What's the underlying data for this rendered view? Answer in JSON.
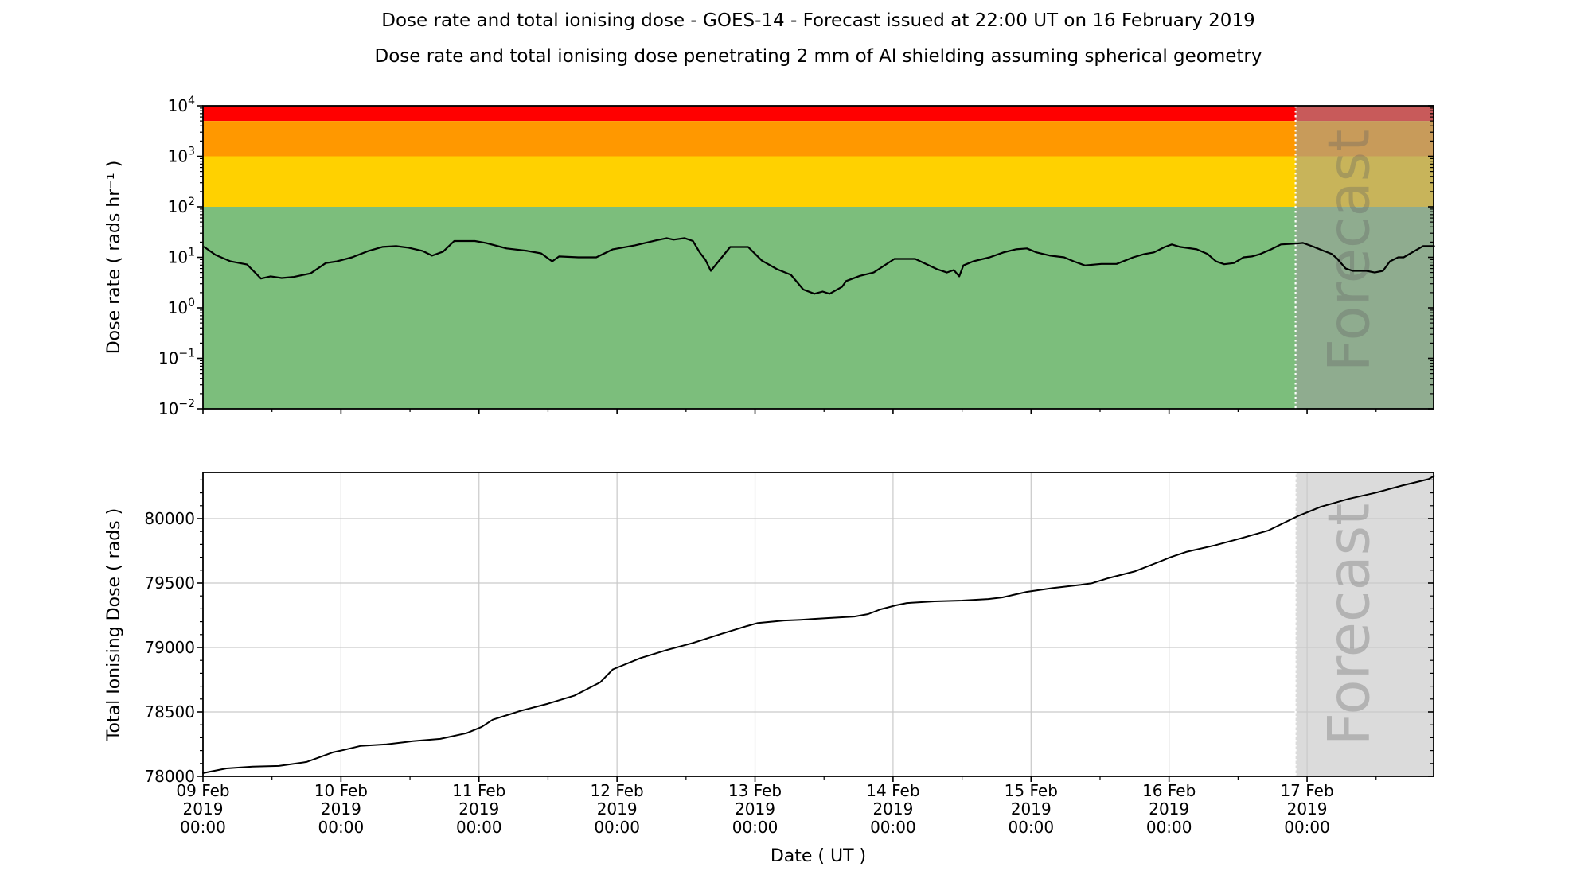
{
  "header": {
    "title": "Dose rate and total ionising dose - GOES-14 - Forecast issued at 22:00 UT on 16 February 2019",
    "subtitle": "Dose rate and total ionising dose penetrating 2 mm of Al shielding assuming spherical geometry"
  },
  "forecast": {
    "label": "Forecast",
    "start_day": 7.9167,
    "start_label": "22:00 UT 16 Feb 2019",
    "divider_color": "#ffffff",
    "overlay_color_top": "rgba(158,158,158,0.57)",
    "overlay_color_bottom": "#dbdbdb",
    "label_color": "rgba(95,95,95,0.32)"
  },
  "x_axis": {
    "label": "Date ( UT )",
    "range_days": [
      0,
      8.9167
    ],
    "minor_tick_interval_days": 0.5,
    "major_ticks": [
      {
        "day": 0,
        "lines": [
          "09 Feb",
          "2019",
          "00:00"
        ]
      },
      {
        "day": 1,
        "lines": [
          "10 Feb",
          "2019",
          "00:00"
        ]
      },
      {
        "day": 2,
        "lines": [
          "11 Feb",
          "2019",
          "00:00"
        ]
      },
      {
        "day": 3,
        "lines": [
          "12 Feb",
          "2019",
          "00:00"
        ]
      },
      {
        "day": 4,
        "lines": [
          "13 Feb",
          "2019",
          "00:00"
        ]
      },
      {
        "day": 5,
        "lines": [
          "14 Feb",
          "2019",
          "00:00"
        ]
      },
      {
        "day": 6,
        "lines": [
          "15 Feb",
          "2019",
          "00:00"
        ]
      },
      {
        "day": 7,
        "lines": [
          "16 Feb",
          "2019",
          "00:00"
        ]
      },
      {
        "day": 8,
        "lines": [
          "17 Feb",
          "2019",
          "00:00"
        ]
      }
    ]
  },
  "chart_data": [
    {
      "type": "line",
      "name": "dose-rate-panel",
      "ylabel": "Dose rate ( rads hr⁻¹ )",
      "yscale": "log",
      "ylim": [
        0.01,
        10000
      ],
      "ytick_exponents": [
        4,
        3,
        2,
        1,
        0,
        -1,
        -2
      ],
      "grid": false,
      "line_color": "#000000",
      "bands": [
        {
          "name": "red",
          "range": [
            5000,
            10000
          ],
          "color": "#ff0000"
        },
        {
          "name": "orange",
          "range": [
            1000,
            5000
          ],
          "color": "#ff9800"
        },
        {
          "name": "yellow",
          "range": [
            100,
            1000
          ],
          "color": "#ffd100"
        },
        {
          "name": "green",
          "range": [
            0.01,
            100
          ],
          "color": "#7cbe7c"
        }
      ],
      "series": [
        {
          "name": "GOES-14 dose rate",
          "points": [
            [
              0.01,
              16
            ],
            [
              0.09,
              11.2
            ],
            [
              0.2,
              8.3
            ],
            [
              0.32,
              7.2
            ],
            [
              0.42,
              3.8
            ],
            [
              0.49,
              4.2
            ],
            [
              0.57,
              3.9
            ],
            [
              0.66,
              4.1
            ],
            [
              0.78,
              4.8
            ],
            [
              0.89,
              7.7
            ],
            [
              0.97,
              8.3
            ],
            [
              1.08,
              10
            ],
            [
              1.2,
              13.4
            ],
            [
              1.3,
              16.1
            ],
            [
              1.4,
              16.7
            ],
            [
              1.49,
              15.5
            ],
            [
              1.59,
              13.4
            ],
            [
              1.66,
              10.8
            ],
            [
              1.74,
              13
            ],
            [
              1.82,
              21
            ],
            [
              1.97,
              21
            ],
            [
              2.05,
              19.3
            ],
            [
              2.2,
              15
            ],
            [
              2.35,
              13.4
            ],
            [
              2.45,
              12
            ],
            [
              2.53,
              8.3
            ],
            [
              2.58,
              10.4
            ],
            [
              2.72,
              10
            ],
            [
              2.85,
              10
            ],
            [
              2.97,
              14.4
            ],
            [
              3.13,
              17.3
            ],
            [
              3.28,
              21.6
            ],
            [
              3.36,
              24
            ],
            [
              3.41,
              22.4
            ],
            [
              3.49,
              24
            ],
            [
              3.55,
              21
            ],
            [
              3.6,
              12.4
            ],
            [
              3.64,
              9
            ],
            [
              3.68,
              5.4
            ],
            [
              3.82,
              16
            ],
            [
              3.95,
              16
            ],
            [
              4.05,
              8.6
            ],
            [
              4.16,
              5.8
            ],
            [
              4.26,
              4.5
            ],
            [
              4.35,
              2.3
            ],
            [
              4.43,
              1.9
            ],
            [
              4.49,
              2.1
            ],
            [
              4.54,
              1.9
            ],
            [
              4.63,
              2.6
            ],
            [
              4.66,
              3.4
            ],
            [
              4.76,
              4.3
            ],
            [
              4.86,
              5.0
            ],
            [
              5.01,
              9.3
            ],
            [
              5.16,
              9.3
            ],
            [
              5.32,
              5.8
            ],
            [
              5.39,
              5.0
            ],
            [
              5.44,
              5.6
            ],
            [
              5.48,
              4.2
            ],
            [
              5.51,
              6.9
            ],
            [
              5.58,
              8.3
            ],
            [
              5.7,
              10
            ],
            [
              5.8,
              12.5
            ],
            [
              5.89,
              14.4
            ],
            [
              5.97,
              15
            ],
            [
              6.04,
              12.5
            ],
            [
              6.14,
              10.8
            ],
            [
              6.24,
              10
            ],
            [
              6.31,
              8.3
            ],
            [
              6.39,
              6.9
            ],
            [
              6.51,
              7.4
            ],
            [
              6.62,
              7.4
            ],
            [
              6.74,
              10
            ],
            [
              6.82,
              11.6
            ],
            [
              6.89,
              12.5
            ],
            [
              6.97,
              16.1
            ],
            [
              7.02,
              18
            ],
            [
              7.08,
              16.1
            ],
            [
              7.2,
              14.4
            ],
            [
              7.28,
              11.6
            ],
            [
              7.34,
              8.3
            ],
            [
              7.4,
              7.3
            ],
            [
              7.47,
              7.7
            ],
            [
              7.54,
              10
            ],
            [
              7.6,
              10.4
            ],
            [
              7.66,
              11.6
            ],
            [
              7.74,
              14.4
            ],
            [
              7.81,
              18
            ],
            [
              7.92,
              18.7
            ],
            [
              7.97,
              19.3
            ],
            [
              8.05,
              16.1
            ],
            [
              8.12,
              13.4
            ],
            [
              8.18,
              11.6
            ],
            [
              8.22,
              9.3
            ],
            [
              8.28,
              6.0
            ],
            [
              8.33,
              5.4
            ],
            [
              8.43,
              5.4
            ],
            [
              8.49,
              5.0
            ],
            [
              8.55,
              5.4
            ],
            [
              8.6,
              8.3
            ],
            [
              8.66,
              10
            ],
            [
              8.7,
              10
            ],
            [
              8.78,
              13.4
            ],
            [
              8.84,
              16.7
            ],
            [
              8.92,
              16.7
            ]
          ]
        }
      ]
    },
    {
      "type": "line",
      "name": "total-ionising-dose-panel",
      "ylabel": "Total Ionising Dose ( rads )",
      "yscale": "linear",
      "ylim": [
        78000,
        80358
      ],
      "yticks": [
        78000,
        78500,
        79000,
        79500,
        80000
      ],
      "y_minor_interval": 100,
      "grid": true,
      "grid_color": "#c9c9c9",
      "line_color": "#000000",
      "series": [
        {
          "name": "GOES-14 total ionising dose",
          "points": [
            [
              0.0,
              78025
            ],
            [
              0.17,
              78062
            ],
            [
              0.36,
              78075
            ],
            [
              0.55,
              78081
            ],
            [
              0.75,
              78112
            ],
            [
              0.94,
              78186
            ],
            [
              1.02,
              78205
            ],
            [
              1.14,
              78236
            ],
            [
              1.33,
              78248
            ],
            [
              1.52,
              78273
            ],
            [
              1.72,
              78291
            ],
            [
              1.91,
              78335
            ],
            [
              2.02,
              78384
            ],
            [
              2.1,
              78440
            ],
            [
              2.3,
              78508
            ],
            [
              2.5,
              78564
            ],
            [
              2.69,
              78626
            ],
            [
              2.88,
              78731
            ],
            [
              2.97,
              78830
            ],
            [
              3.17,
              78918
            ],
            [
              3.36,
              78980
            ],
            [
              3.55,
              79035
            ],
            [
              3.75,
              79104
            ],
            [
              3.94,
              79166
            ],
            [
              4.02,
              79190
            ],
            [
              4.21,
              79209
            ],
            [
              4.33,
              79215
            ],
            [
              4.52,
              79228
            ],
            [
              4.72,
              79240
            ],
            [
              4.82,
              79259
            ],
            [
              4.91,
              79296
            ],
            [
              5.02,
              79327
            ],
            [
              5.1,
              79345
            ],
            [
              5.3,
              79358
            ],
            [
              5.5,
              79364
            ],
            [
              5.69,
              79376
            ],
            [
              5.79,
              79388
            ],
            [
              5.97,
              79432
            ],
            [
              6.16,
              79462
            ],
            [
              6.36,
              79486
            ],
            [
              6.44,
              79498
            ],
            [
              6.55,
              79535
            ],
            [
              6.75,
              79590
            ],
            [
              6.94,
              79670
            ],
            [
              7.01,
              79700
            ],
            [
              7.13,
              79743
            ],
            [
              7.33,
              79792
            ],
            [
              7.52,
              79847
            ],
            [
              7.72,
              79908
            ],
            [
              7.93,
              80018
            ],
            [
              8.1,
              80092
            ],
            [
              8.3,
              80153
            ],
            [
              8.5,
              80202
            ],
            [
              8.69,
              80257
            ],
            [
              8.88,
              80306
            ],
            [
              8.92,
              80330
            ]
          ]
        }
      ]
    }
  ]
}
